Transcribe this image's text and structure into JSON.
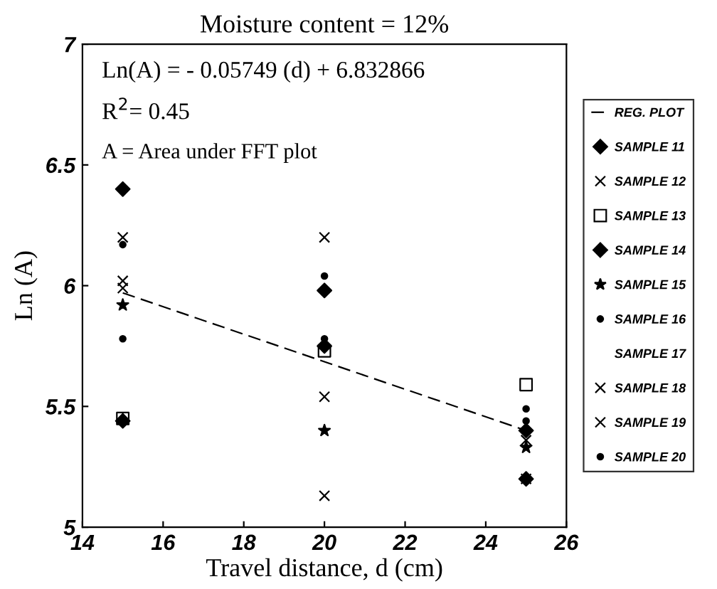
{
  "chart_data": {
    "type": "scatter",
    "title": "Moisture content = 12%",
    "xlabel": "Travel distance, d (cm)",
    "ylabel": "Ln (A)",
    "annotations": [
      "Ln(A) = - 0.05749 (d) + 6.832866",
      "R$^{2}$= 0.45",
      "A = Area under FFT plot"
    ],
    "x": [
      15,
      20,
      25
    ],
    "xlim": [
      14,
      26
    ],
    "xticks": [
      14,
      16,
      18,
      20,
      22,
      24,
      26
    ],
    "ylim": [
      5,
      7
    ],
    "yticks": [
      5,
      {
        "value": 5.5,
        "label": "5.5"
      },
      6,
      {
        "value": 6.5,
        "label": "6.5"
      },
      7
    ],
    "grid": false,
    "legend": "right",
    "series": [
      {
        "name": "REG. PLOT",
        "type": "line",
        "line_style": "dashed",
        "marker": "none",
        "color": "#000000",
        "x": [
          15,
          25
        ],
        "values": [
          5.97,
          5.4
        ]
      },
      {
        "name": "SAMPLE 11",
        "marker": "diamond",
        "color": "#000000",
        "values": [
          6.4,
          5.98,
          5.4
        ]
      },
      {
        "name": "SAMPLE 12",
        "marker": "cross",
        "color": "#000000",
        "values": [
          6.2,
          6.2,
          5.36
        ]
      },
      {
        "name": "SAMPLE 13",
        "marker": "square",
        "color": "#000000",
        "values": [
          5.45,
          5.73,
          5.59
        ]
      },
      {
        "name": "SAMPLE 14",
        "marker": "diamond",
        "color": "#000000",
        "values": [
          5.44,
          5.75,
          5.2
        ]
      },
      {
        "name": "SAMPLE 15",
        "marker": "star",
        "color": "#000000",
        "values": [
          5.92,
          5.4,
          5.33
        ]
      },
      {
        "name": "SAMPLE 16",
        "marker": "circle",
        "color": "#000000",
        "values": [
          6.17,
          5.78,
          5.44
        ]
      },
      {
        "name": "SAMPLE 17",
        "marker": "none",
        "color": "#000000",
        "values": [
          null,
          null,
          null
        ]
      },
      {
        "name": "SAMPLE 18",
        "marker": "cross",
        "color": "#000000",
        "values": [
          5.99,
          5.54,
          5.2
        ]
      },
      {
        "name": "SAMPLE 19",
        "marker": "cross",
        "color": "#000000",
        "values": [
          6.02,
          5.13,
          null
        ]
      },
      {
        "name": "SAMPLE 20",
        "marker": "circle",
        "color": "#000000",
        "values": [
          5.78,
          6.04,
          5.49
        ]
      }
    ]
  }
}
